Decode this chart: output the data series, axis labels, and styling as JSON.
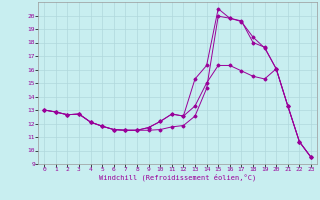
{
  "xlabel": "Windchill (Refroidissement éolien,°C)",
  "bg_color": "#c8eef0",
  "line_color": "#990099",
  "grid_color": "#b0d8dc",
  "xlim": [
    -0.5,
    23.5
  ],
  "ylim": [
    9,
    21
  ],
  "xticks": [
    0,
    1,
    2,
    3,
    4,
    5,
    6,
    7,
    8,
    9,
    10,
    11,
    12,
    13,
    14,
    15,
    16,
    17,
    18,
    19,
    20,
    21,
    22,
    23
  ],
  "yticks": [
    9,
    10,
    11,
    12,
    13,
    14,
    15,
    16,
    17,
    18,
    19,
    20
  ],
  "line1_x": [
    0,
    1,
    2,
    3,
    4,
    5,
    6,
    7,
    8,
    9,
    10,
    11,
    12,
    13,
    14,
    15,
    16,
    17,
    18,
    19,
    20,
    21,
    22,
    23
  ],
  "line1_y": [
    13.0,
    12.85,
    12.65,
    12.7,
    12.1,
    11.8,
    11.55,
    11.5,
    11.5,
    11.5,
    11.55,
    11.75,
    11.85,
    12.55,
    14.6,
    19.95,
    19.8,
    19.55,
    18.4,
    17.6,
    16.05,
    13.3,
    10.65,
    9.5
  ],
  "line2_x": [
    0,
    1,
    2,
    3,
    4,
    5,
    6,
    7,
    8,
    9,
    10,
    11,
    12,
    13,
    14,
    15,
    16,
    17,
    18,
    19,
    20,
    21,
    22,
    23
  ],
  "line2_y": [
    13.0,
    12.85,
    12.65,
    12.7,
    12.1,
    11.8,
    11.55,
    11.5,
    11.5,
    11.7,
    12.15,
    12.7,
    12.55,
    13.3,
    15.0,
    16.3,
    16.3,
    15.9,
    15.5,
    15.3,
    16.05,
    13.3,
    10.65,
    9.5
  ],
  "line3_x": [
    0,
    1,
    2,
    3,
    4,
    5,
    6,
    7,
    8,
    9,
    10,
    11,
    12,
    13,
    14,
    15,
    16,
    17,
    18,
    19,
    20,
    21,
    22,
    23
  ],
  "line3_y": [
    13.0,
    12.85,
    12.65,
    12.7,
    12.1,
    11.8,
    11.55,
    11.5,
    11.5,
    11.7,
    12.15,
    12.7,
    12.55,
    15.3,
    16.3,
    20.5,
    19.8,
    19.6,
    18.0,
    17.65,
    16.05,
    13.3,
    10.65,
    9.5
  ]
}
